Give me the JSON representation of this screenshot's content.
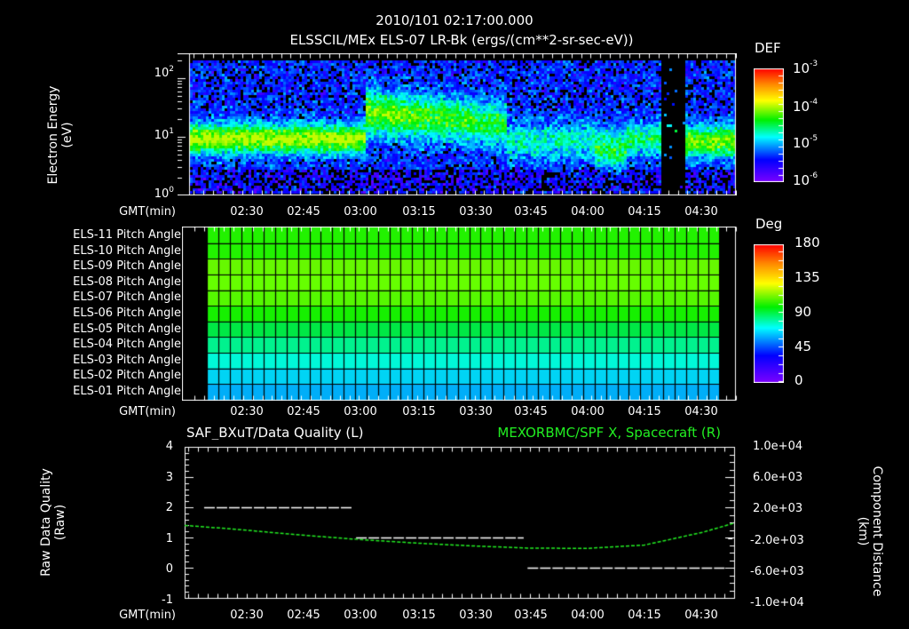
{
  "header": {
    "timestamp": "2010/101 02:17:00.000",
    "title": "ELSSCIL/MEx ELS-07 LR-Bk  (ergs/(cm**2-sr-sec-eV))"
  },
  "time_axis": {
    "label": "GMT(min)",
    "ticks": [
      "02:30",
      "02:45",
      "03:00",
      "03:15",
      "03:30",
      "03:45",
      "04:00",
      "04:15",
      "04:30"
    ]
  },
  "panel1": {
    "ylabel_line1": "Electron Energy",
    "ylabel_line2": "(eV)",
    "yticks": [
      {
        "base": "10",
        "exp": "2"
      },
      {
        "base": "10",
        "exp": "1"
      },
      {
        "base": "10",
        "exp": "0"
      }
    ],
    "colorbar": {
      "title": "DEF",
      "ticks": [
        {
          "base": "10",
          "exp": "-3"
        },
        {
          "base": "10",
          "exp": "-4"
        },
        {
          "base": "10",
          "exp": "-5"
        },
        {
          "base": "10",
          "exp": "-6"
        }
      ]
    }
  },
  "panel2": {
    "row_labels": [
      "ELS-11 Pitch Angle",
      "ELS-10 Pitch Angle",
      "ELS-09 Pitch Angle",
      "ELS-08 Pitch Angle",
      "ELS-07 Pitch Angle",
      "ELS-06 Pitch Angle",
      "ELS-05 Pitch Angle",
      "ELS-04 Pitch Angle",
      "ELS-03 Pitch Angle",
      "ELS-02 Pitch Angle",
      "ELS-01 Pitch Angle"
    ],
    "row_colors": [
      "#22f200",
      "#22f200",
      "#66f800",
      "#66ff00",
      "#55f800",
      "#16f000",
      "#00e845",
      "#00f28e",
      "#00f8d8",
      "#00d4f4",
      "#00aef8"
    ],
    "colorbar": {
      "title": "Deg",
      "ticks": [
        "180",
        "135",
        "90",
        "45",
        "0"
      ]
    }
  },
  "panel3": {
    "left_title": "SAF_BXuT/Data Quality (L)",
    "right_title": "MEXORBMC/SPF X, Spacecraft (R)",
    "right_title_color": "#22ee22",
    "ylabel_left_line1": "Raw Data Quality",
    "ylabel_left_line2": "(Raw)",
    "yticks_left": [
      "4",
      "3",
      "2",
      "1",
      "0",
      "-1"
    ],
    "ylabel_right_line1": "Component Distance",
    "ylabel_right_line2": "(km)",
    "yticks_right": [
      "1.0e+04",
      "6.0e+03",
      "2.0e+03",
      "-2.0e+03",
      "-6.0e+03",
      "-1.0e+04"
    ]
  },
  "chart_data": [
    {
      "type": "heatmap",
      "title": "ELSSCIL/MEx ELS-07 LR-Bk (ergs/(cm**2-sr-sec-eV))",
      "xlabel": "GMT(min)",
      "ylabel": "Electron Energy (eV)",
      "x_ticks": [
        "02:30",
        "02:45",
        "03:00",
        "03:15",
        "03:30",
        "03:45",
        "04:00",
        "04:15",
        "04:30"
      ],
      "x_range": [
        "02:17",
        "04:38"
      ],
      "y_scale": "log",
      "ylim": [
        1,
        200
      ],
      "colorbar": {
        "label": "DEF",
        "scale": "log",
        "range": [
          1e-06,
          0.001
        ]
      },
      "features": [
        {
          "time": "02:17-03:00",
          "energy_eV": "3-15",
          "level": "~1e-5"
        },
        {
          "time": "03:05-03:35",
          "energy_eV": "15-60",
          "level": "~1e-4"
        },
        {
          "time": "03:35-04:10",
          "energy_eV": "3-20",
          "level": "~1e-5"
        },
        {
          "time": "04:17-04:20",
          "energy_eV": "all",
          "level": "no data"
        },
        {
          "time": "04:25-04:38",
          "energy_eV": "4-15",
          "level": "~3e-5"
        }
      ]
    },
    {
      "type": "heatmap",
      "title": "ELS Pitch Angle",
      "xlabel": "GMT(min)",
      "categories": [
        "ELS-11",
        "ELS-10",
        "ELS-09",
        "ELS-08",
        "ELS-07",
        "ELS-06",
        "ELS-05",
        "ELS-04",
        "ELS-03",
        "ELS-02",
        "ELS-01"
      ],
      "values_deg": [
        100,
        100,
        112,
        114,
        110,
        97,
        85,
        75,
        62,
        55,
        50
      ],
      "colorbar": {
        "label": "Deg",
        "range": [
          0,
          180
        ],
        "ticks": [
          0,
          45,
          90,
          135,
          180
        ]
      }
    },
    {
      "type": "line",
      "title": "SAF_BXuT/Data Quality (L) / MEXORBMC/SPF X, Spacecraft (R)",
      "xlabel": "GMT(min)",
      "x_ticks": [
        "02:30",
        "02:45",
        "03:00",
        "03:15",
        "03:30",
        "03:45",
        "04:00",
        "04:15",
        "04:30"
      ],
      "series": [
        {
          "name": "Data Quality (L)",
          "axis": "left",
          "x": [
            "02:22",
            "03:00",
            "03:01",
            "03:44",
            "03:45",
            "04:36"
          ],
          "values": [
            2,
            2,
            1,
            1,
            0,
            0
          ]
        },
        {
          "name": "SPF X Spacecraft (R)",
          "axis": "right",
          "color": "#22ee22",
          "x": [
            "02:17",
            "02:30",
            "02:45",
            "03:00",
            "03:15",
            "03:30",
            "03:45",
            "04:00",
            "04:15",
            "04:30",
            "04:38"
          ],
          "values": [
            -400,
            -900,
            -1600,
            -2200,
            -2700,
            -3100,
            -3400,
            -3450,
            -3000,
            -1300,
            -100
          ]
        }
      ],
      "ylim_left": [
        -1,
        4
      ],
      "ylim_right": [
        -10000,
        10000
      ],
      "ylabel_left": "Raw Data Quality (Raw)",
      "ylabel_right": "Component Distance (km)"
    }
  ]
}
